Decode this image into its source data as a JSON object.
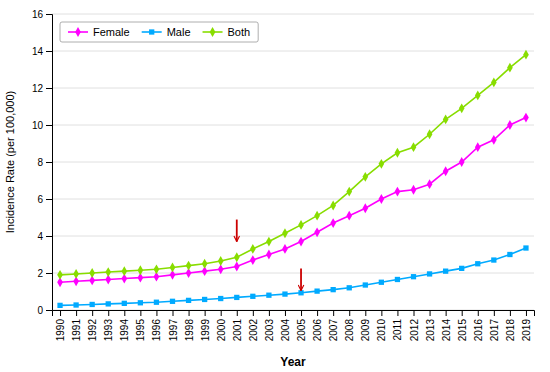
{
  "chart_data": {
    "type": "line",
    "xlabel": "Year",
    "ylabel": "Incidence Rate (per 100,000)",
    "x": [
      1990,
      1991,
      1992,
      1993,
      1994,
      1995,
      1996,
      1997,
      1998,
      1999,
      2000,
      2001,
      2002,
      2003,
      2004,
      2005,
      2006,
      2007,
      2008,
      2009,
      2010,
      2011,
      2012,
      2013,
      2014,
      2015,
      2016,
      2017,
      2018,
      2019
    ],
    "series": [
      {
        "name": "Female",
        "color": "#FF00FF",
        "marker": "diamond",
        "values": [
          1.5,
          1.55,
          1.6,
          1.65,
          1.7,
          1.75,
          1.8,
          1.9,
          2.0,
          2.1,
          2.2,
          2.35,
          2.7,
          3.0,
          3.3,
          3.7,
          4.2,
          4.7,
          5.1,
          5.5,
          6.0,
          6.4,
          6.5,
          6.8,
          7.5,
          8.0,
          8.8,
          9.2,
          10.0,
          10.4
        ]
      },
      {
        "name": "Male",
        "color": "#00AAFF",
        "marker": "square",
        "values": [
          0.25,
          0.27,
          0.3,
          0.33,
          0.36,
          0.39,
          0.42,
          0.47,
          0.52,
          0.57,
          0.62,
          0.68,
          0.74,
          0.8,
          0.86,
          0.93,
          1.02,
          1.1,
          1.2,
          1.35,
          1.5,
          1.65,
          1.8,
          1.95,
          2.1,
          2.25,
          2.5,
          2.7,
          3.0,
          3.35
        ]
      },
      {
        "name": "Both",
        "color": "#88DD00",
        "marker": "diamond",
        "values": [
          1.9,
          1.95,
          2.0,
          2.05,
          2.1,
          2.15,
          2.2,
          2.3,
          2.4,
          2.5,
          2.65,
          2.85,
          3.3,
          3.7,
          4.15,
          4.6,
          5.1,
          5.65,
          6.4,
          7.2,
          7.9,
          8.5,
          8.8,
          9.5,
          10.3,
          10.9,
          11.6,
          12.3,
          13.1,
          13.8
        ]
      }
    ],
    "annotations": [
      {
        "x": 2001,
        "y": 3.7,
        "color": "#CC0000"
      },
      {
        "x": 2005,
        "y": 1.05,
        "color": "#CC0000"
      }
    ],
    "xlim": [
      1989.5,
      2019.5
    ],
    "xticks": [
      1990,
      1991,
      1992,
      1993,
      1994,
      1995,
      1996,
      1997,
      1998,
      1999,
      2000,
      2001,
      2002,
      2003,
      2004,
      2005,
      2006,
      2007,
      2008,
      2009,
      2010,
      2011,
      2012,
      2013,
      2014,
      2015,
      2016,
      2017,
      2018,
      2019
    ],
    "ylim": [
      0,
      16
    ],
    "yticks": [
      0,
      2,
      4,
      6,
      8,
      10,
      12,
      14,
      16
    ],
    "grid": true,
    "legend": "upper left"
  }
}
